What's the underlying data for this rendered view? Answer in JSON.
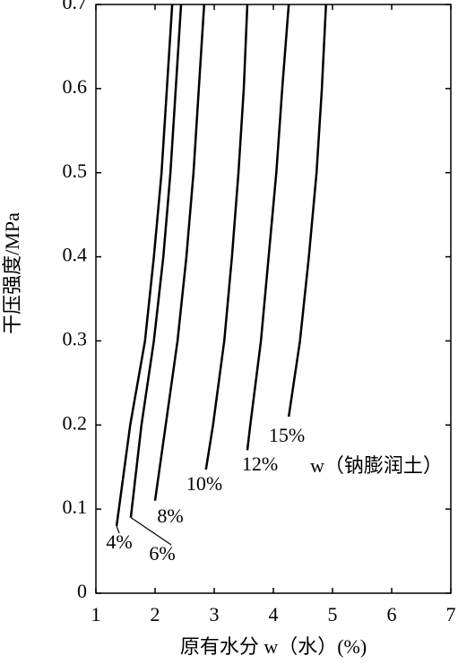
{
  "chart_data": {
    "type": "line",
    "xlabel": "原有水分 w（水）(%)",
    "ylabel": "干压强度/MPa",
    "annotation": "w（钠膨润土）",
    "xlim": [
      1,
      7
    ],
    "xticks": [
      1,
      2,
      3,
      4,
      5,
      6,
      7
    ],
    "ylim": [
      0,
      0.7
    ],
    "yticks": [
      0,
      0.1,
      0.2,
      0.3,
      0.4,
      0.5,
      0.6,
      0.7
    ],
    "series": [
      {
        "name": "4%",
        "color": "#000000",
        "x": [
          1.35,
          1.58,
          1.83,
          1.98,
          2.11,
          2.2,
          2.29
        ],
        "values": [
          0.08,
          0.2,
          0.3,
          0.4,
          0.5,
          0.6,
          0.7
        ]
      },
      {
        "name": "6%",
        "color": "#000000",
        "x": [
          1.59,
          1.77,
          1.98,
          2.14,
          2.26,
          2.35,
          2.44
        ],
        "values": [
          0.09,
          0.2,
          0.3,
          0.4,
          0.5,
          0.6,
          0.7
        ]
      },
      {
        "name": "8%",
        "color": "#000000",
        "x": [
          2.0,
          2.18,
          2.38,
          2.53,
          2.65,
          2.74,
          2.83
        ],
        "values": [
          0.11,
          0.2,
          0.3,
          0.4,
          0.5,
          0.6,
          0.7
        ]
      },
      {
        "name": "10%",
        "color": "#000000",
        "x": [
          2.86,
          2.98,
          3.17,
          3.3,
          3.41,
          3.5,
          3.56
        ],
        "values": [
          0.147,
          0.2,
          0.3,
          0.4,
          0.5,
          0.6,
          0.7
        ]
      },
      {
        "name": "12%",
        "color": "#000000",
        "x": [
          3.56,
          3.61,
          3.79,
          3.92,
          4.05,
          4.15,
          4.26
        ],
        "values": [
          0.17,
          0.2,
          0.3,
          0.4,
          0.5,
          0.6,
          0.7
        ]
      },
      {
        "name": "15%",
        "color": "#000000",
        "x": [
          4.26,
          4.45,
          4.6,
          4.73,
          4.82,
          4.89
        ],
        "values": [
          0.21,
          0.3,
          0.4,
          0.5,
          0.6,
          0.7
        ]
      }
    ]
  }
}
